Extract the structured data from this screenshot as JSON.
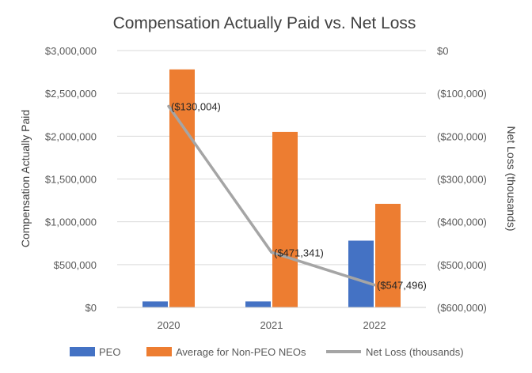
{
  "chart_data": {
    "type": "bar",
    "title": "Compensation Actually Paid vs. Net Loss",
    "xlabel": "",
    "ylabel": "Compensation Actually Paid",
    "y2label": "Net Loss (thousands)",
    "categories": [
      "2020",
      "2021",
      "2022"
    ],
    "ylim": [
      0,
      3000000
    ],
    "y2lim": [
      -600000,
      0
    ],
    "y_ticks": [
      "$0",
      "$500,000",
      "$1,000,000",
      "$1,500,000",
      "$2,000,000",
      "$2,500,000",
      "$3,000,000"
    ],
    "y2_ticks": [
      "($600,000)",
      "($500,000)",
      "($400,000)",
      "($300,000)",
      "($200,000)",
      "($100,000)",
      "$0"
    ],
    "grid": true,
    "legend_position": "bottom",
    "series": [
      {
        "name": "PEO",
        "type": "bar",
        "axis": "left",
        "color": "#4472C4",
        "values": [
          70000,
          70000,
          780000
        ]
      },
      {
        "name": "Average for Non-PEO NEOs",
        "type": "bar",
        "axis": "left",
        "color": "#ED7D31",
        "values": [
          2780000,
          2050000,
          1210000
        ]
      },
      {
        "name": "Net Loss (thousands)",
        "type": "line",
        "axis": "right",
        "color": "#A5A5A5",
        "values": [
          -130004,
          -471341,
          -547496
        ],
        "labels": [
          "($130,004)",
          "($471,341)",
          "($547,496)"
        ]
      }
    ]
  }
}
